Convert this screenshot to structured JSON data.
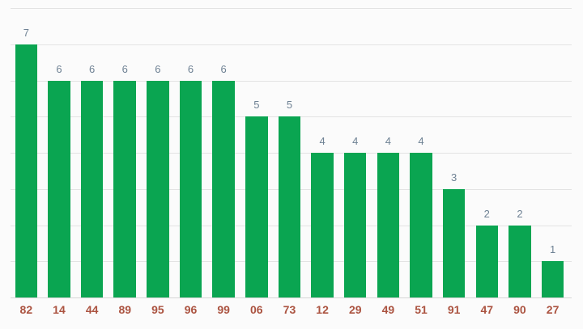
{
  "chart_data": {
    "type": "bar",
    "categories": [
      "82",
      "14",
      "44",
      "89",
      "95",
      "96",
      "99",
      "06",
      "73",
      "12",
      "29",
      "49",
      "51",
      "91",
      "47",
      "90",
      "27"
    ],
    "values": [
      7,
      6,
      6,
      6,
      6,
      6,
      6,
      5,
      5,
      4,
      4,
      4,
      4,
      3,
      2,
      2,
      1
    ],
    "xlabel": "",
    "ylabel": "",
    "ylim": [
      0,
      8
    ],
    "grid": true,
    "legend": "none",
    "value_labels_shown": true,
    "bar_color": "#0aa551",
    "value_label_color": "#6f8294",
    "category_label_color": "#ab5340",
    "gridline_color": "#e3e3e3",
    "background_color": "#fbfbfb"
  }
}
